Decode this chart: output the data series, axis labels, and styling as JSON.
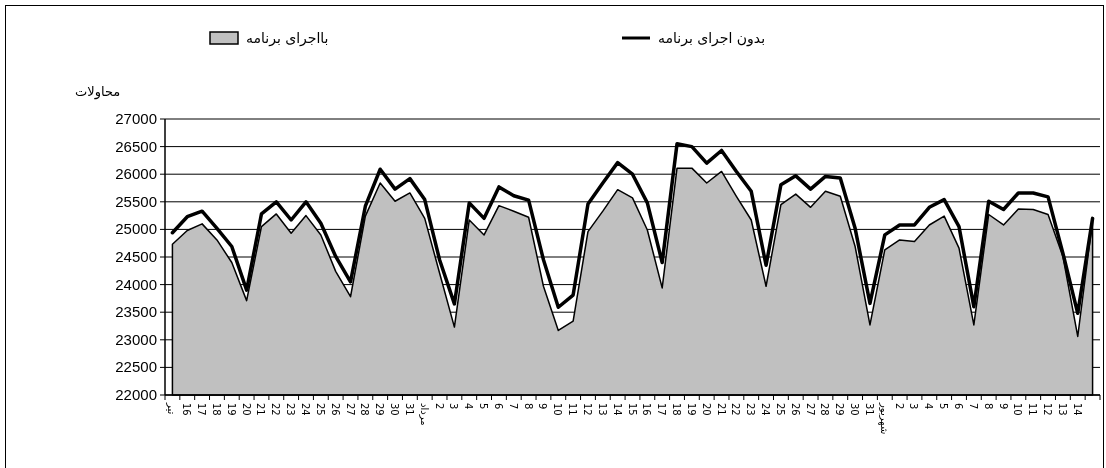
{
  "chart_data": {
    "type": "area",
    "ylabel": "محاولات",
    "categories": [
      "تیر",
      "16",
      "17",
      "18",
      "19",
      "20",
      "21",
      "22",
      "23",
      "24",
      "25",
      "26",
      "27",
      "28",
      "29",
      "30",
      "31",
      "مرداد",
      "2",
      "3",
      "4",
      "5",
      "6",
      "7",
      "8",
      "9",
      "10",
      "11",
      "12",
      "13",
      "14",
      "15",
      "16",
      "17",
      "18",
      "19",
      "20",
      "21",
      "22",
      "23",
      "24",
      "25",
      "26",
      "27",
      "28",
      "29",
      "30",
      "31",
      "شهریور",
      "2",
      "3",
      "4",
      "5",
      "6",
      "7",
      "8",
      "9",
      "10",
      "11",
      "12",
      "13",
      "14",
      null
    ],
    "series": [
      {
        "name": "بااجرای برنامه",
        "type": "area",
        "color": "#c0c0c0",
        "values": [
          24730,
          24980,
          25100,
          24810,
          24400,
          23710,
          25050,
          25280,
          24930,
          25250,
          24900,
          24240,
          23780,
          25240,
          25840,
          25510,
          25660,
          25200,
          24210,
          23230,
          25170,
          24900,
          25430,
          25330,
          25220,
          23970,
          23170,
          23340,
          24960,
          25330,
          25720,
          25570,
          24990,
          23940,
          26110,
          26110,
          25840,
          26050,
          25600,
          25170,
          23970,
          25450,
          25640,
          25400,
          25690,
          25600,
          24690,
          23270,
          24630,
          24810,
          24780,
          25080,
          25240,
          24660,
          23270,
          25270,
          25080,
          25370,
          25360,
          25270,
          24510,
          23060,
          25170
        ]
      },
      {
        "name": "بدون اجرای برنامه",
        "type": "line",
        "color": "#000000",
        "values": [
          24940,
          25230,
          25330,
          25020,
          24690,
          23900,
          25280,
          25500,
          25170,
          25500,
          25110,
          24510,
          24050,
          25420,
          26090,
          25730,
          25920,
          25540,
          24450,
          23650,
          25480,
          25200,
          25770,
          25610,
          25530,
          24450,
          23590,
          23810,
          25460,
          25840,
          26210,
          26000,
          25480,
          24400,
          26550,
          26500,
          26200,
          26430,
          26050,
          25690,
          24350,
          25810,
          25970,
          25730,
          25960,
          25930,
          25020,
          23660,
          24900,
          25080,
          25080,
          25400,
          25540,
          25050,
          23600,
          25510,
          25360,
          25660,
          25660,
          25590,
          24570,
          23480,
          25200
        ]
      }
    ],
    "ylim": [
      22000,
      27000
    ],
    "yticks": [
      22000,
      22500,
      23000,
      23500,
      24000,
      24500,
      25000,
      25500,
      26000,
      26500,
      27000
    ],
    "grid": "y",
    "legend": "top"
  }
}
